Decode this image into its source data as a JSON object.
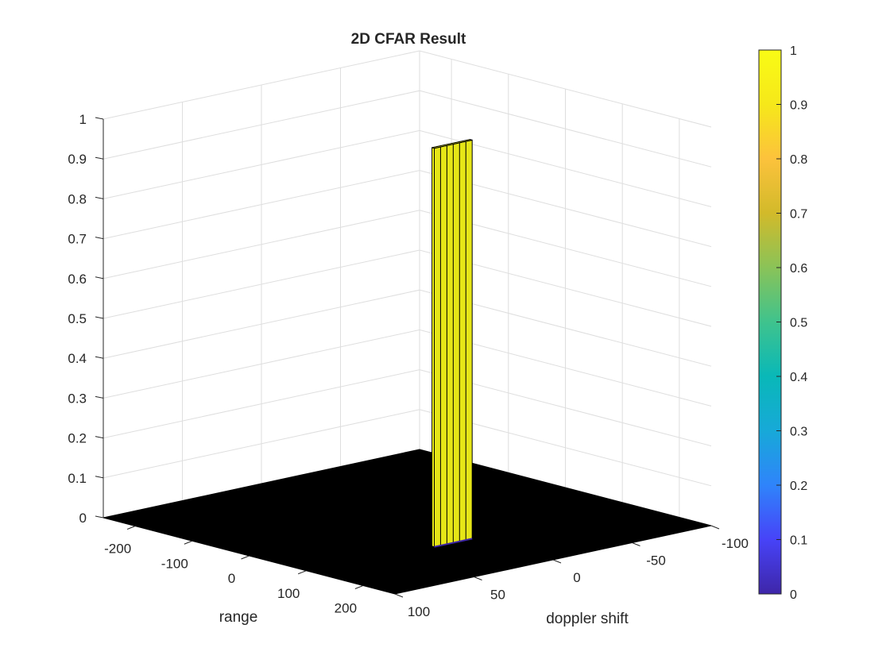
{
  "colors": {
    "background": "#ffffff",
    "floor": "#000000",
    "grid": "#dedede",
    "axis": "#262626",
    "colormap": [
      "#3e26a8",
      "#4743f8",
      "#2f84fb",
      "#17a9d8",
      "#09b8b8",
      "#3fc38d",
      "#8ac358",
      "#d2ba2a",
      "#fcc23c",
      "#f6e81a",
      "#f9fb15"
    ]
  },
  "chart_data": {
    "type": "surface",
    "title": "2D CFAR Result",
    "xlabel": "range",
    "ylabel": "doppler shift",
    "zlabel": "",
    "xlim": [
      -256,
      256
    ],
    "ylim": [
      -100,
      100
    ],
    "zlim": [
      0,
      1
    ],
    "x_ticks": [
      -200,
      -100,
      0,
      100,
      200
    ],
    "x_tick_labels": [
      "-200",
      "-100",
      "0",
      "100",
      "200"
    ],
    "y_ticks": [
      100,
      50,
      0,
      -50,
      -100
    ],
    "y_tick_labels": [
      "100",
      "50",
      "0",
      "-50",
      "-100"
    ],
    "z_ticks": [
      0,
      0.1,
      0.2,
      0.3,
      0.4,
      0.5,
      0.6,
      0.7,
      0.8,
      0.9,
      1
    ],
    "z_tick_labels": [
      "0",
      "0.1",
      "0.2",
      "0.3",
      "0.4",
      "0.5",
      "0.6",
      "0.7",
      "0.8",
      "0.9",
      "1"
    ],
    "grid": true,
    "detection": {
      "x": [
        110,
        114
      ],
      "y": [
        0,
        24
      ],
      "z": 1
    },
    "colorbar": {
      "position": "right",
      "limits": [
        0,
        1
      ],
      "ticks": [
        0,
        0.1,
        0.2,
        0.3,
        0.4,
        0.5,
        0.6,
        0.7,
        0.8,
        0.9,
        1
      ],
      "tick_labels": [
        "0",
        "0.1",
        "0.2",
        "0.3",
        "0.4",
        "0.5",
        "0.6",
        "0.7",
        "0.8",
        "0.9",
        "1"
      ]
    }
  }
}
